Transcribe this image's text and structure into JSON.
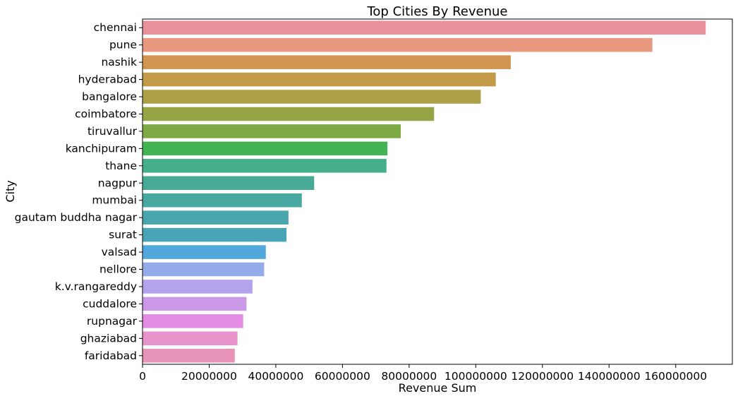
{
  "chart_data": {
    "type": "bar",
    "orientation": "horizontal",
    "title": "Top Cities By Revenue",
    "xlabel": "Revenue Sum",
    "ylabel": "City",
    "xlim": [
      0,
      177000000
    ],
    "xticks": [
      0,
      20000000,
      40000000,
      60000000,
      80000000,
      100000000,
      120000000,
      140000000,
      160000000
    ],
    "xtick_labels": [
      "0",
      "20000000",
      "40000000",
      "60000000",
      "80000000",
      "100000000",
      "120000000",
      "140000000",
      "160000000"
    ],
    "grid": false,
    "categories": [
      "chennai",
      "pune",
      "nashik",
      "hyderabad",
      "bangalore",
      "coimbatore",
      "tiruvallur",
      "kanchipuram",
      "thane",
      "nagpur",
      "mumbai",
      "gautam buddha nagar",
      "surat",
      "valsad",
      "nellore",
      "k.v.rangareddy",
      "cuddalore",
      "rupnagar",
      "ghaziabad",
      "faridabad"
    ],
    "values": [
      169000000,
      153000000,
      110500000,
      106000000,
      101500000,
      87500000,
      77500000,
      73500000,
      73200000,
      51500000,
      47800000,
      43800000,
      43200000,
      37000000,
      36500000,
      33000000,
      31200000,
      30200000,
      28500000,
      27700000
    ],
    "colors": [
      "#e8919b",
      "#e8987f",
      "#d29451",
      "#c39a48",
      "#aba046",
      "#97a445",
      "#7fa945",
      "#43b354",
      "#45ae8a",
      "#47aa96",
      "#48a8a2",
      "#49a6ad",
      "#4aa4b8",
      "#50a8dd",
      "#93abe8",
      "#b4a2ec",
      "#cb98e8",
      "#e48be3",
      "#e894ca",
      "#e893b8"
    ]
  }
}
